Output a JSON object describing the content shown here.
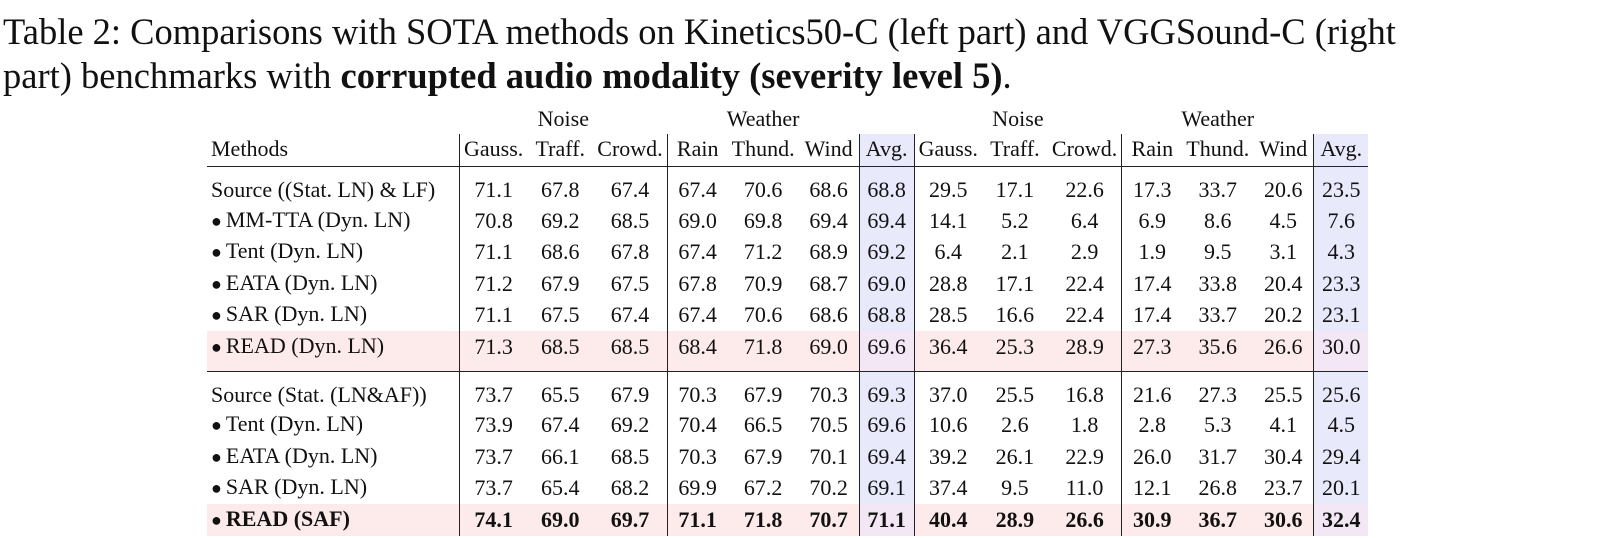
{
  "caption": {
    "prefix": "Table 2:  Comparisons with SOTA methods on Kinetics50-C (left part) and VGGSound-C (right",
    "line2_plain": "part) benchmarks with ",
    "line2_bold": "corrupted audio modality (severity level 5)",
    "line2_end": "."
  },
  "table": {
    "group_headers": {
      "noise": "Noise",
      "weather": "Weather"
    },
    "methods_header": "Methods",
    "columns": [
      "Gauss.",
      "Traff.",
      "Crowd.",
      "Rain",
      "Thund.",
      "Wind",
      "Avg."
    ],
    "bullet": "●",
    "block1": [
      {
        "method": "Source ((Stat. LN) & LF)",
        "bullet": false,
        "kinetics": [
          "71.1",
          "67.8",
          "67.4",
          "67.4",
          "70.6",
          "68.6",
          "68.8"
        ],
        "vgg": [
          "29.5",
          "17.1",
          "22.6",
          "17.3",
          "33.7",
          "20.6",
          "23.5"
        ]
      },
      {
        "method": "MM-TTA (Dyn. LN)",
        "bullet": true,
        "kinetics": [
          "70.8",
          "69.2",
          "68.5",
          "69.0",
          "69.8",
          "69.4",
          "69.4"
        ],
        "vgg": [
          "14.1",
          "5.2",
          "6.4",
          "6.9",
          "8.6",
          "4.5",
          "7.6"
        ]
      },
      {
        "method": "Tent (Dyn. LN)",
        "bullet": true,
        "kinetics": [
          "71.1",
          "68.6",
          "67.8",
          "67.4",
          "71.2",
          "68.9",
          "69.2"
        ],
        "vgg": [
          "6.4",
          "2.1",
          "2.9",
          "1.9",
          "9.5",
          "3.1",
          "4.3"
        ]
      },
      {
        "method": "EATA (Dyn. LN)",
        "bullet": true,
        "kinetics": [
          "71.2",
          "67.9",
          "67.5",
          "67.8",
          "70.9",
          "68.7",
          "69.0"
        ],
        "vgg": [
          "28.8",
          "17.1",
          "22.4",
          "17.4",
          "33.8",
          "20.4",
          "23.3"
        ]
      },
      {
        "method": "SAR (Dyn. LN)",
        "bullet": true,
        "kinetics": [
          "71.1",
          "67.5",
          "67.4",
          "67.4",
          "70.6",
          "68.6",
          "68.8"
        ],
        "vgg": [
          "28.5",
          "16.6",
          "22.4",
          "17.4",
          "33.7",
          "20.2",
          "23.1"
        ]
      },
      {
        "method": "READ (Dyn. LN)",
        "bullet": true,
        "kinetics": [
          "71.3",
          "68.5",
          "68.5",
          "68.4",
          "71.8",
          "69.0",
          "69.6"
        ],
        "vgg": [
          "36.4",
          "25.3",
          "28.9",
          "27.3",
          "35.6",
          "26.6",
          "30.0"
        ]
      }
    ],
    "block2": [
      {
        "method": "Source (Stat. (LN&AF))",
        "bullet": false,
        "kinetics": [
          "73.7",
          "65.5",
          "67.9",
          "70.3",
          "67.9",
          "70.3",
          "69.3"
        ],
        "vgg": [
          "37.0",
          "25.5",
          "16.8",
          "21.6",
          "27.3",
          "25.5",
          "25.6"
        ]
      },
      {
        "method": "Tent (Dyn. LN)",
        "bullet": true,
        "kinetics": [
          "73.9",
          "67.4",
          "69.2",
          "70.4",
          "66.5",
          "70.5",
          "69.6"
        ],
        "vgg": [
          "10.6",
          "2.6",
          "1.8",
          "2.8",
          "5.3",
          "4.1",
          "4.5"
        ]
      },
      {
        "method": "EATA (Dyn. LN)",
        "bullet": true,
        "kinetics": [
          "73.7",
          "66.1",
          "68.5",
          "70.3",
          "67.9",
          "70.1",
          "69.4"
        ],
        "vgg": [
          "39.2",
          "26.1",
          "22.9",
          "26.0",
          "31.7",
          "30.4",
          "29.4"
        ]
      },
      {
        "method": "SAR (Dyn. LN)",
        "bullet": true,
        "kinetics": [
          "73.7",
          "65.4",
          "68.2",
          "69.9",
          "67.2",
          "70.2",
          "69.1"
        ],
        "vgg": [
          "37.4",
          "9.5",
          "11.0",
          "12.1",
          "26.8",
          "23.7",
          "20.1"
        ]
      },
      {
        "method": "READ (SAF)",
        "bullet": true,
        "kinetics": [
          "74.1",
          "69.0",
          "69.7",
          "71.1",
          "71.8",
          "70.7",
          "71.1"
        ],
        "vgg": [
          "40.4",
          "28.9",
          "26.6",
          "30.9",
          "36.7",
          "30.6",
          "32.4"
        ]
      }
    ]
  }
}
